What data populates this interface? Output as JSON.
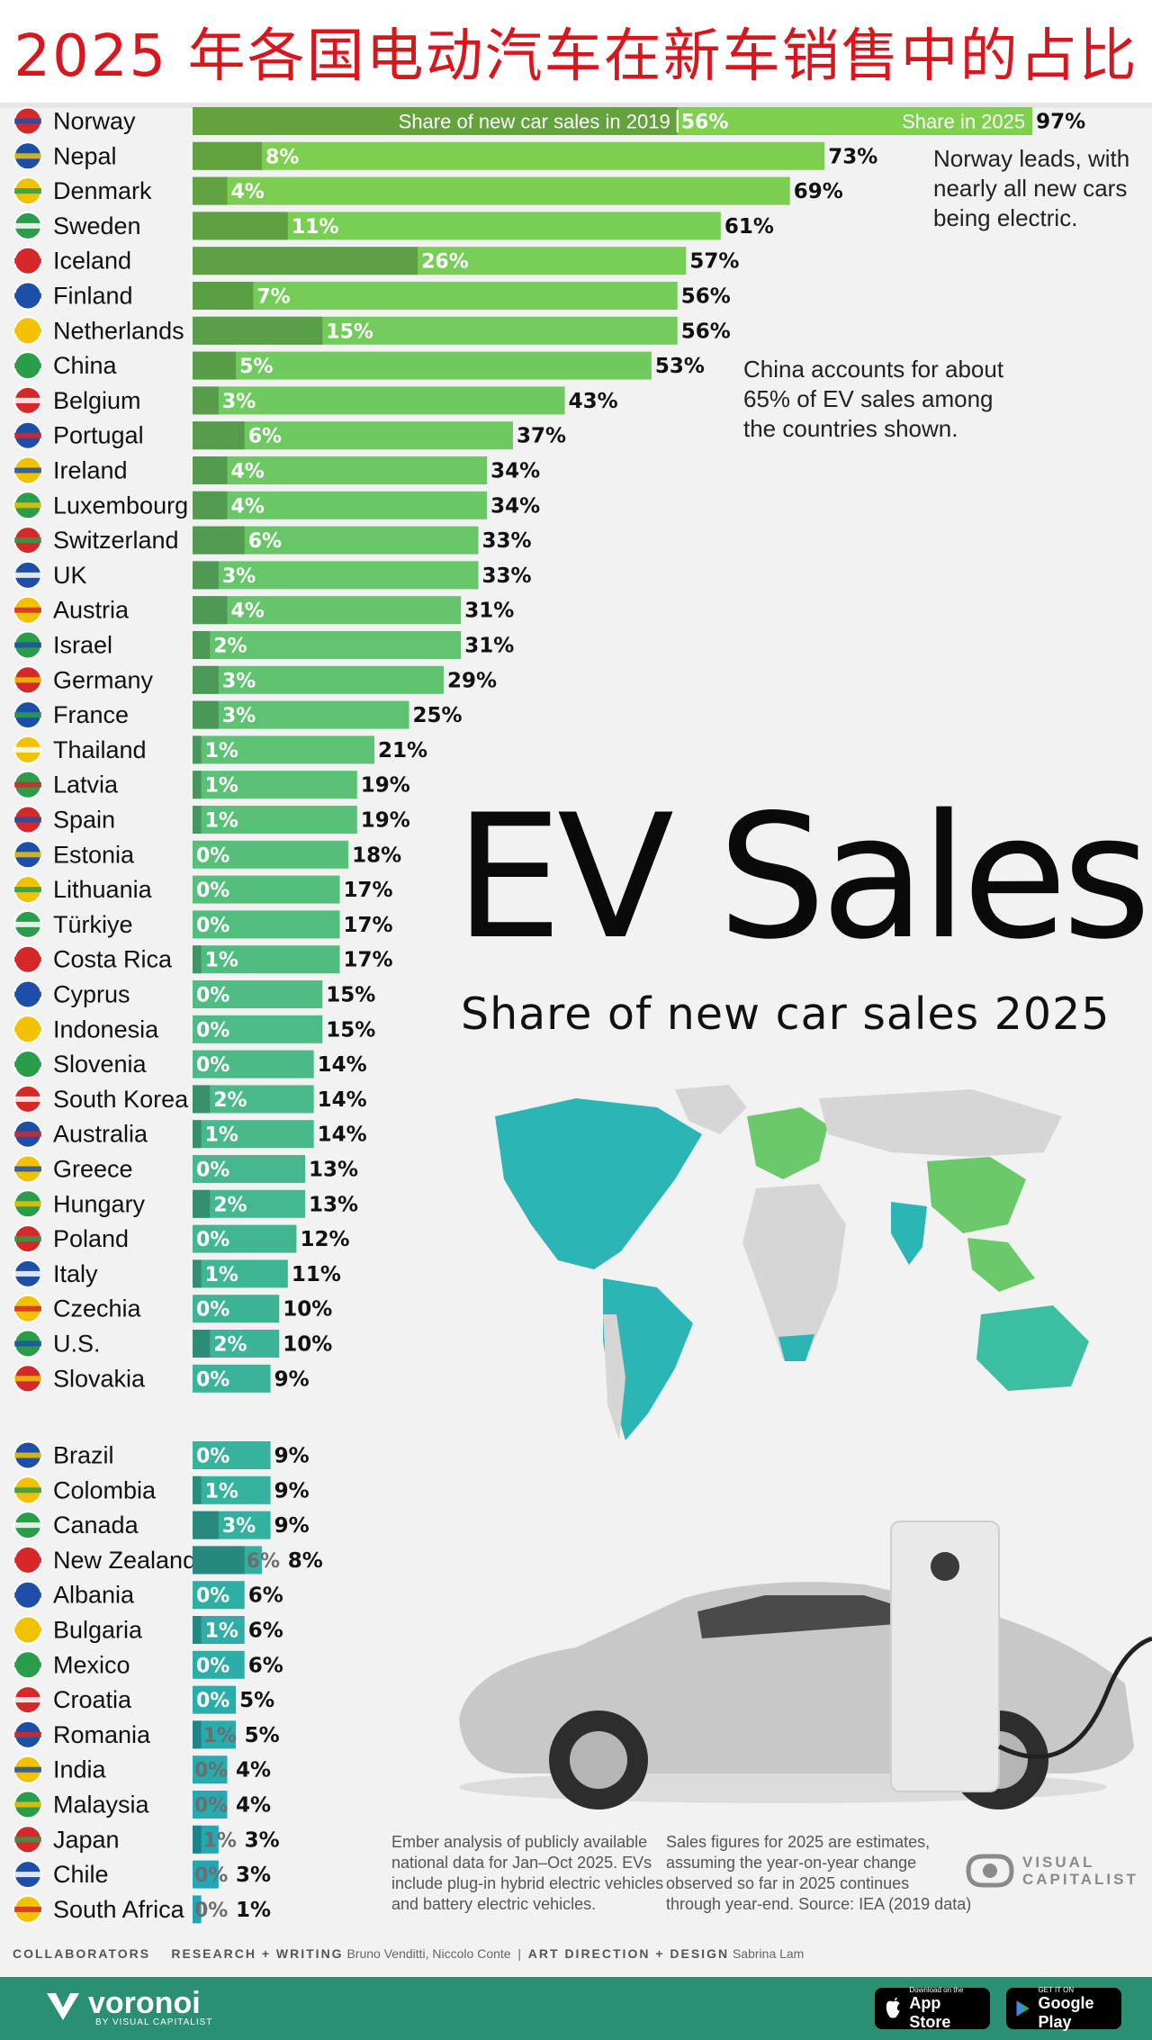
{
  "header": {
    "title": "2025 年各国电动汽车在新车销售中的占比"
  },
  "legend": {
    "share_2019_label": "Share of new car sales in 2019",
    "share_2025_label": "Share in 2025"
  },
  "notes": {
    "norway": [
      "Norway leads, with",
      "nearly all new cars",
      "being electric."
    ],
    "china": [
      "China accounts for about",
      "65% of EV sales among",
      "the countries shown."
    ]
  },
  "hero": {
    "title": "EV Sales",
    "subtitle": "Share of new car sales 2025"
  },
  "source_left": [
    "Ember analysis of publicly available",
    "national data for Jan–Oct 2025. EVs",
    "include plug-in hybrid electric vehicles",
    "and battery electric vehicles."
  ],
  "source_right": [
    "Sales figures for 2025 are estimates,",
    "assuming the year-on-year change",
    "observed so far in 2025 continues",
    "through year-end. Source: IEA (2019 data)"
  ],
  "brand": {
    "vc_line1": "VISUAL",
    "vc_line2": "CAPITALIST"
  },
  "collaborators": {
    "heading": "COLLABORATORS",
    "research_label": "RESEARCH + WRITING",
    "research_names": "Bruno Venditti, Niccolo Conte",
    "art_label": "ART DIRECTION + DESIGN",
    "art_names": "Sabrina Lam"
  },
  "footer": {
    "logo_name": "voronoi",
    "logo_by": "BY VISUAL CAPITALIST",
    "app_store_small": "Download on the",
    "app_store_big": "App Store",
    "play_small": "GET IT ON",
    "play_big": "Google Play"
  },
  "colors": {
    "title_red": "#d9161d",
    "footer_green": "#2a8f73",
    "bar_top": "#7fd04e",
    "bar_bottom": "#1ea8b7"
  },
  "chart_data": {
    "type": "bar",
    "title": "EV Sales — Share of new car sales 2025",
    "orientation": "horizontal",
    "series": [
      {
        "name": "Share in 2025",
        "unit": "%"
      },
      {
        "name": "Share of new car sales in 2019",
        "unit": "%"
      }
    ],
    "groups": [
      {
        "categories": [
          "Norway",
          "Nepal",
          "Denmark",
          "Sweden",
          "Iceland",
          "Finland",
          "Netherlands",
          "China",
          "Belgium",
          "Portugal",
          "Ireland",
          "Luxembourg",
          "Switzerland",
          "UK",
          "Austria",
          "Israel",
          "Germany",
          "France",
          "Thailand",
          "Latvia",
          "Spain",
          "Estonia",
          "Lithuania",
          "Türkiye",
          "Costa Rica",
          "Cyprus",
          "Indonesia",
          "Slovenia",
          "South Korea",
          "Australia",
          "Greece",
          "Hungary",
          "Poland",
          "Italy",
          "Czechia",
          "U.S.",
          "Slovakia"
        ],
        "share_2025": [
          97,
          73,
          69,
          61,
          57,
          56,
          56,
          53,
          43,
          37,
          34,
          34,
          33,
          33,
          31,
          31,
          29,
          25,
          21,
          19,
          19,
          18,
          17,
          17,
          17,
          15,
          15,
          14,
          14,
          14,
          13,
          13,
          12,
          11,
          10,
          10,
          9
        ],
        "share_2019": [
          56,
          8,
          4,
          11,
          26,
          7,
          15,
          5,
          3,
          6,
          4,
          4,
          6,
          3,
          4,
          2,
          3,
          3,
          1,
          1,
          1,
          0,
          0,
          0,
          1,
          0,
          0,
          0,
          2,
          1,
          0,
          2,
          0,
          1,
          0,
          2,
          0
        ]
      },
      {
        "categories": [
          "Brazil",
          "Colombia",
          "Canada",
          "New Zealand",
          "Albania",
          "Bulgaria",
          "Mexico",
          "Croatia",
          "Romania",
          "India",
          "Malaysia",
          "Japan",
          "Chile",
          "South Africa"
        ],
        "share_2025": [
          9,
          9,
          9,
          8,
          6,
          6,
          6,
          5,
          5,
          4,
          4,
          3,
          3,
          1
        ],
        "share_2019": [
          0,
          1,
          3,
          6,
          0,
          1,
          0,
          0,
          1,
          0,
          0,
          1,
          0,
          0
        ]
      }
    ],
    "xlim": [
      0,
      100
    ],
    "value_labels": true
  }
}
